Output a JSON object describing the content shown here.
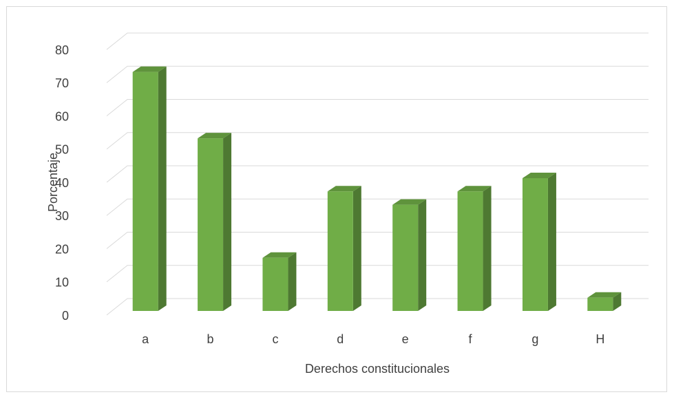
{
  "chart_data": {
    "type": "bar3d",
    "categories": [
      "a",
      "b",
      "c",
      "d",
      "e",
      "f",
      "g",
      "H"
    ],
    "values": [
      72,
      52,
      16,
      36,
      32,
      36,
      40,
      4
    ],
    "color": "#70ad47",
    "x_label": "Derechos constitucionales",
    "y_label": "Porcentaje",
    "ylim": [
      0,
      80
    ],
    "yticks": [
      0,
      10,
      20,
      30,
      40,
      50,
      60,
      70,
      80
    ],
    "grid": true
  }
}
